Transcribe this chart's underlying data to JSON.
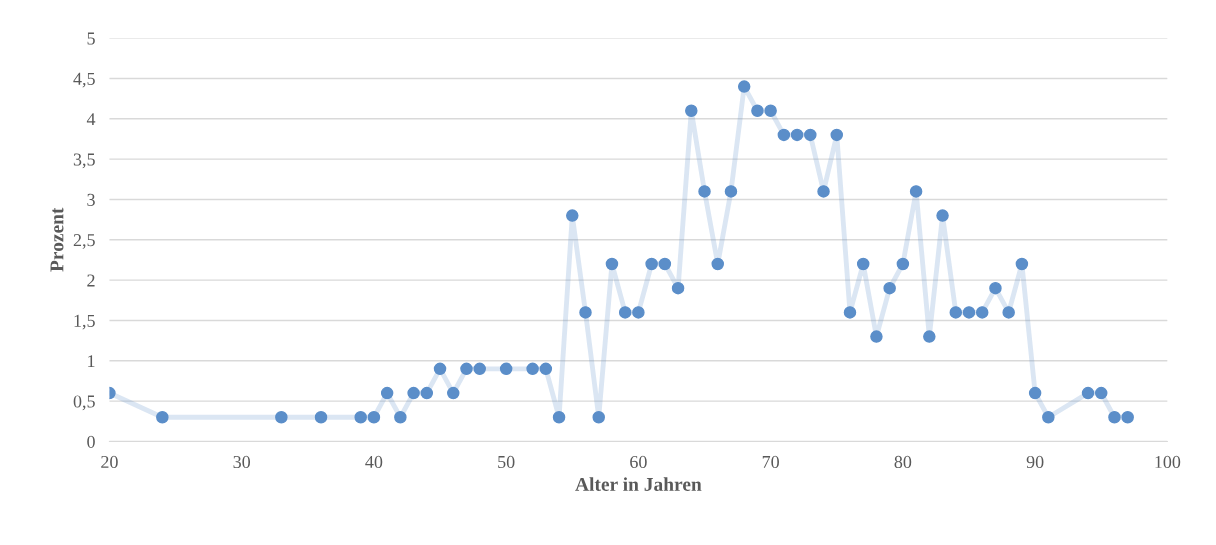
{
  "chart_data": {
    "type": "line",
    "xlabel": "Alter in Jahren",
    "ylabel": "Prozent",
    "x": [
      20,
      24,
      33,
      36,
      39,
      40,
      41,
      42,
      43,
      44,
      45,
      46,
      47,
      48,
      50,
      52,
      53,
      54,
      55,
      56,
      57,
      58,
      59,
      60,
      61,
      62,
      63,
      64,
      65,
      66,
      67,
      68,
      69,
      70,
      71,
      72,
      73,
      74,
      75,
      76,
      77,
      78,
      79,
      80,
      81,
      82,
      83,
      84,
      85,
      86,
      87,
      88,
      89,
      90,
      91,
      94,
      95,
      96,
      97
    ],
    "series": [
      {
        "color": "#5b8ec9",
        "values": [
          0.6,
          0.3,
          0.3,
          0.3,
          0.3,
          0.3,
          0.6,
          0.3,
          0.6,
          0.6,
          0.9,
          0.6,
          0.9,
          0.9,
          0.9,
          0.9,
          0.9,
          0.3,
          2.8,
          1.6,
          0.3,
          2.2,
          1.6,
          1.6,
          2.2,
          2.2,
          1.9,
          4.1,
          3.1,
          2.2,
          3.1,
          4.4,
          4.1,
          4.1,
          3.8,
          3.8,
          3.8,
          3.1,
          3.8,
          1.6,
          2.2,
          1.3,
          1.9,
          2.2,
          3.1,
          1.3,
          2.8,
          1.6,
          1.6,
          1.6,
          1.9,
          1.6,
          2.2,
          0.6,
          0.3,
          0.6,
          0.6,
          0.3,
          0.3
        ]
      }
    ],
    "xlim": [
      20,
      100
    ],
    "xticks": [
      20,
      30,
      40,
      50,
      60,
      70,
      80,
      90,
      100
    ],
    "ylim": [
      0,
      5
    ],
    "yticks": [
      0,
      {
        "value": 0.5,
        "label": "0,5"
      },
      1,
      {
        "value": 1.5,
        "label": "1,5"
      },
      2,
      {
        "value": 2.5,
        "label": "2,5"
      },
      3,
      {
        "value": 3.5,
        "label": "3,5"
      },
      4,
      {
        "value": 4.5,
        "label": "4,5"
      },
      5
    ],
    "grid": "y",
    "marker": "circle",
    "line_style": "solid",
    "legend": false
  }
}
